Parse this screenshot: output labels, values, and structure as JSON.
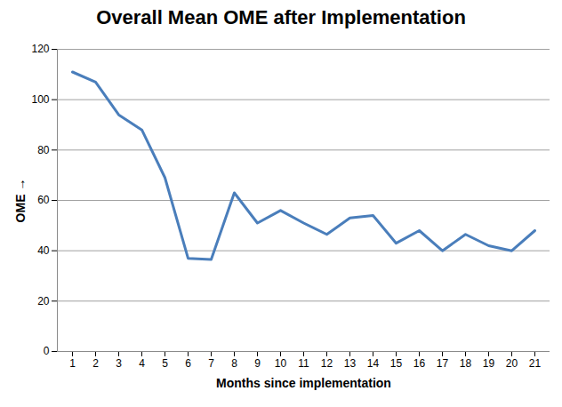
{
  "chart_data": {
    "type": "line",
    "title": "Overall Mean OME after Implementation",
    "x_label": "Months since implementation",
    "y_label": "OME",
    "categories": [
      "1",
      "2",
      "3",
      "4",
      "5",
      "6",
      "7",
      "8",
      "9",
      "10",
      "11",
      "12",
      "13",
      "14",
      "15",
      "16",
      "17",
      "18",
      "19",
      "20",
      "21"
    ],
    "values": [
      111,
      107,
      94,
      88,
      69,
      37,
      36.5,
      63,
      51,
      56,
      51,
      46.5,
      53,
      54,
      43,
      48,
      40,
      46.5,
      42,
      40,
      48
    ],
    "color": "#4a7ebb",
    "ylim": [
      0,
      120
    ],
    "yticks": [
      0,
      20,
      40,
      60,
      80,
      100,
      120
    ],
    "grid": true
  }
}
